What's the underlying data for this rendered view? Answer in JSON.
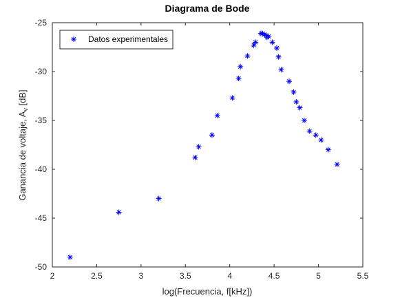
{
  "chart_data": {
    "type": "scatter",
    "title": "Diagrama de Bode",
    "xlabel": "log(Frecuencia, f[kHz])",
    "ylabel_main": "Ganancia de voltaje, A",
    "ylabel_sub": "v",
    "ylabel_tail": " [dB]",
    "xlim": [
      2,
      5.5
    ],
    "ylim": [
      -50,
      -25
    ],
    "xticks": [
      "2",
      "2.5",
      "3",
      "3.5",
      "4",
      "4.5",
      "5",
      "5.5"
    ],
    "yticks": [
      "-25",
      "-30",
      "-35",
      "-40",
      "-45",
      "-50"
    ],
    "grid": false,
    "legend_position": "top-left",
    "marker_color": "#0000ff",
    "series": [
      {
        "name": "Datos experimentales",
        "marker": "asterisk",
        "x": [
          2.2,
          2.75,
          3.2,
          3.61,
          3.65,
          3.8,
          3.86,
          4.03,
          4.1,
          4.12,
          4.2,
          4.27,
          4.29,
          4.35,
          4.37,
          4.39,
          4.41,
          4.42,
          4.44,
          4.48,
          4.53,
          4.55,
          4.58,
          4.67,
          4.72,
          4.75,
          4.79,
          4.84,
          4.9,
          4.97,
          5.03,
          5.11,
          5.21
        ],
        "y": [
          -49.0,
          -44.4,
          -43.0,
          -38.8,
          -37.7,
          -36.5,
          -34.5,
          -32.7,
          -30.7,
          -29.5,
          -28.4,
          -27.3,
          -27.0,
          -26.1,
          -26.1,
          -26.2,
          -26.3,
          -26.5,
          -26.4,
          -27.0,
          -27.6,
          -28.5,
          -29.8,
          -31.0,
          -32.1,
          -33.1,
          -33.7,
          -35.0,
          -36.1,
          -36.5,
          -37.0,
          -38.0,
          -39.5
        ]
      }
    ]
  }
}
